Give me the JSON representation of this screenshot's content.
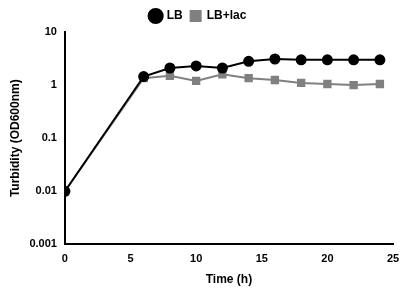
{
  "chart_data": {
    "type": "line",
    "x_label": "Time (h)",
    "y_label": "Turbidity (OD600nm)",
    "x": [
      0,
      6,
      8,
      10,
      12,
      14,
      16,
      18,
      20,
      22,
      24
    ],
    "series": [
      {
        "name": "LB",
        "color": "#000000",
        "marker": "circle",
        "line_style": "solid",
        "values": [
          0.01,
          1.45,
          2.1,
          2.3,
          2.1,
          2.8,
          3.1,
          3.0,
          3.0,
          3.0,
          3.0
        ]
      },
      {
        "name": "LB+lac",
        "color": "#808080",
        "marker": "square",
        "line_style": "solid",
        "values": [
          0.01,
          1.35,
          1.5,
          1.2,
          1.6,
          1.35,
          1.25,
          1.1,
          1.05,
          1.0,
          1.05
        ]
      }
    ],
    "xlim": [
      0,
      25
    ],
    "xticks": [
      0,
      5,
      10,
      15,
      20,
      25
    ],
    "ylim": [
      0.001,
      10
    ],
    "yticks": [
      0.001,
      0.01,
      0.1,
      1,
      10
    ],
    "log": "y",
    "grid": false,
    "legend": "top"
  }
}
